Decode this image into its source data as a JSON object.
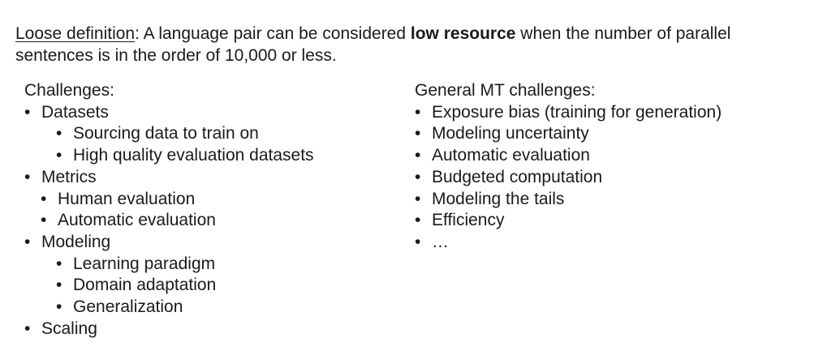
{
  "definition": {
    "term": "Loose definition",
    "after_term": ": A language pair can be considered ",
    "bold": "low resource",
    "rest": " when the number of parallel sentences is in the order of 10,000 or less."
  },
  "challenges": {
    "heading": "Challenges:",
    "datasets": {
      "label": "Datasets",
      "items": [
        "Sourcing data to train on",
        "High quality evaluation datasets"
      ]
    },
    "metrics": {
      "label": "Metrics",
      "items": [
        "Human evaluation",
        "Automatic evaluation"
      ]
    },
    "modeling": {
      "label": "Modeling",
      "items": [
        "Learning paradigm",
        "Domain adaptation",
        "Generalization"
      ]
    },
    "scaling": {
      "label": "Scaling"
    }
  },
  "general": {
    "heading": "General MT challenges:",
    "items": [
      "Exposure bias (training for generation)",
      "Modeling uncertainty",
      "Automatic evaluation",
      "Budgeted computation",
      "Modeling the tails",
      "Efficiency",
      "…"
    ]
  }
}
